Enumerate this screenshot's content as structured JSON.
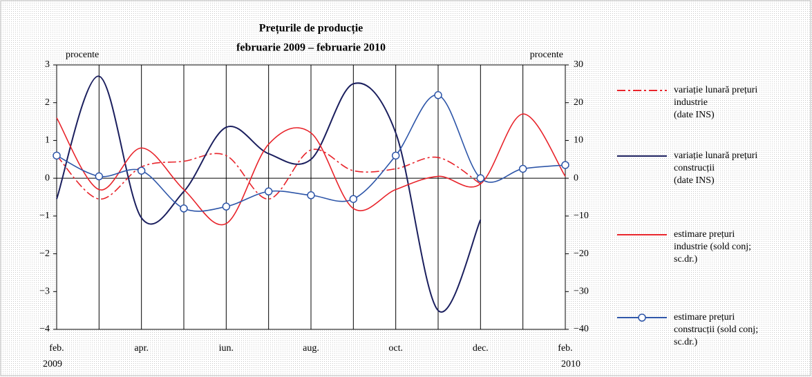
{
  "chart_data": {
    "type": "line",
    "title": "Prețurile de producție",
    "subtitle": "februarie 2009 – februarie 2010",
    "y_unit_label": "procente",
    "y2_unit_label": "procente",
    "start_year": "2009",
    "end_year": "2010",
    "categories": [
      "feb.",
      null,
      "apr.",
      null,
      "iun.",
      null,
      "aug.",
      null,
      "oct.",
      null,
      "dec.",
      null,
      "feb."
    ],
    "ylim": [
      -4,
      3
    ],
    "yticks": [
      {
        "value": -4,
        "label": "−4"
      },
      {
        "value": -3,
        "label": "−3"
      },
      {
        "value": -2,
        "label": "−2"
      },
      {
        "value": -1,
        "label": "−1"
      },
      0,
      1,
      2,
      3
    ],
    "y2lim": [
      -40,
      30
    ],
    "y2ticks": [
      {
        "value": -40,
        "label": "−40"
      },
      {
        "value": -30,
        "label": "−30"
      },
      {
        "value": -20,
        "label": "−20"
      },
      {
        "value": -10,
        "label": "−10"
      },
      0,
      10,
      20,
      30
    ],
    "grid": "vertical",
    "series": [
      {
        "name": "variație lunară prețuri\nindustrie\n(date INS)",
        "color": "#e8232a",
        "style": "dashdot",
        "axis": "y",
        "values": [
          0.6,
          -0.55,
          0.3,
          0.45,
          0.6,
          -0.55,
          0.75,
          0.2,
          0.25,
          0.55,
          -0.15,
          null,
          null
        ]
      },
      {
        "name": "variație lunară prețuri\nconstrucții\n(date INS)",
        "color": "#1b1f5e",
        "style": "solid",
        "axis": "y",
        "values": [
          -0.55,
          2.7,
          -1.05,
          -0.35,
          1.35,
          0.65,
          0.5,
          2.5,
          1.2,
          -3.5,
          -1.1,
          null,
          null
        ]
      },
      {
        "name": "estimare prețuri\nindustrie (sold conj;\nsc.dr.)",
        "color": "#e8232a",
        "style": "solid",
        "axis": "y2",
        "values": [
          16,
          -3,
          8,
          -3,
          -12,
          9,
          12,
          -8,
          -3,
          0.5,
          -1.5,
          17,
          0.5
        ]
      },
      {
        "name": "estimare prețuri\nconstrucții (sold conj;\nsc.dr.)",
        "color": "#2d55a8",
        "style": "marker",
        "axis": "y2",
        "values": [
          6,
          0.5,
          2,
          -8,
          -7.5,
          -3.5,
          -4.5,
          -5.5,
          6,
          22,
          0,
          2.5,
          3.5
        ]
      }
    ]
  }
}
